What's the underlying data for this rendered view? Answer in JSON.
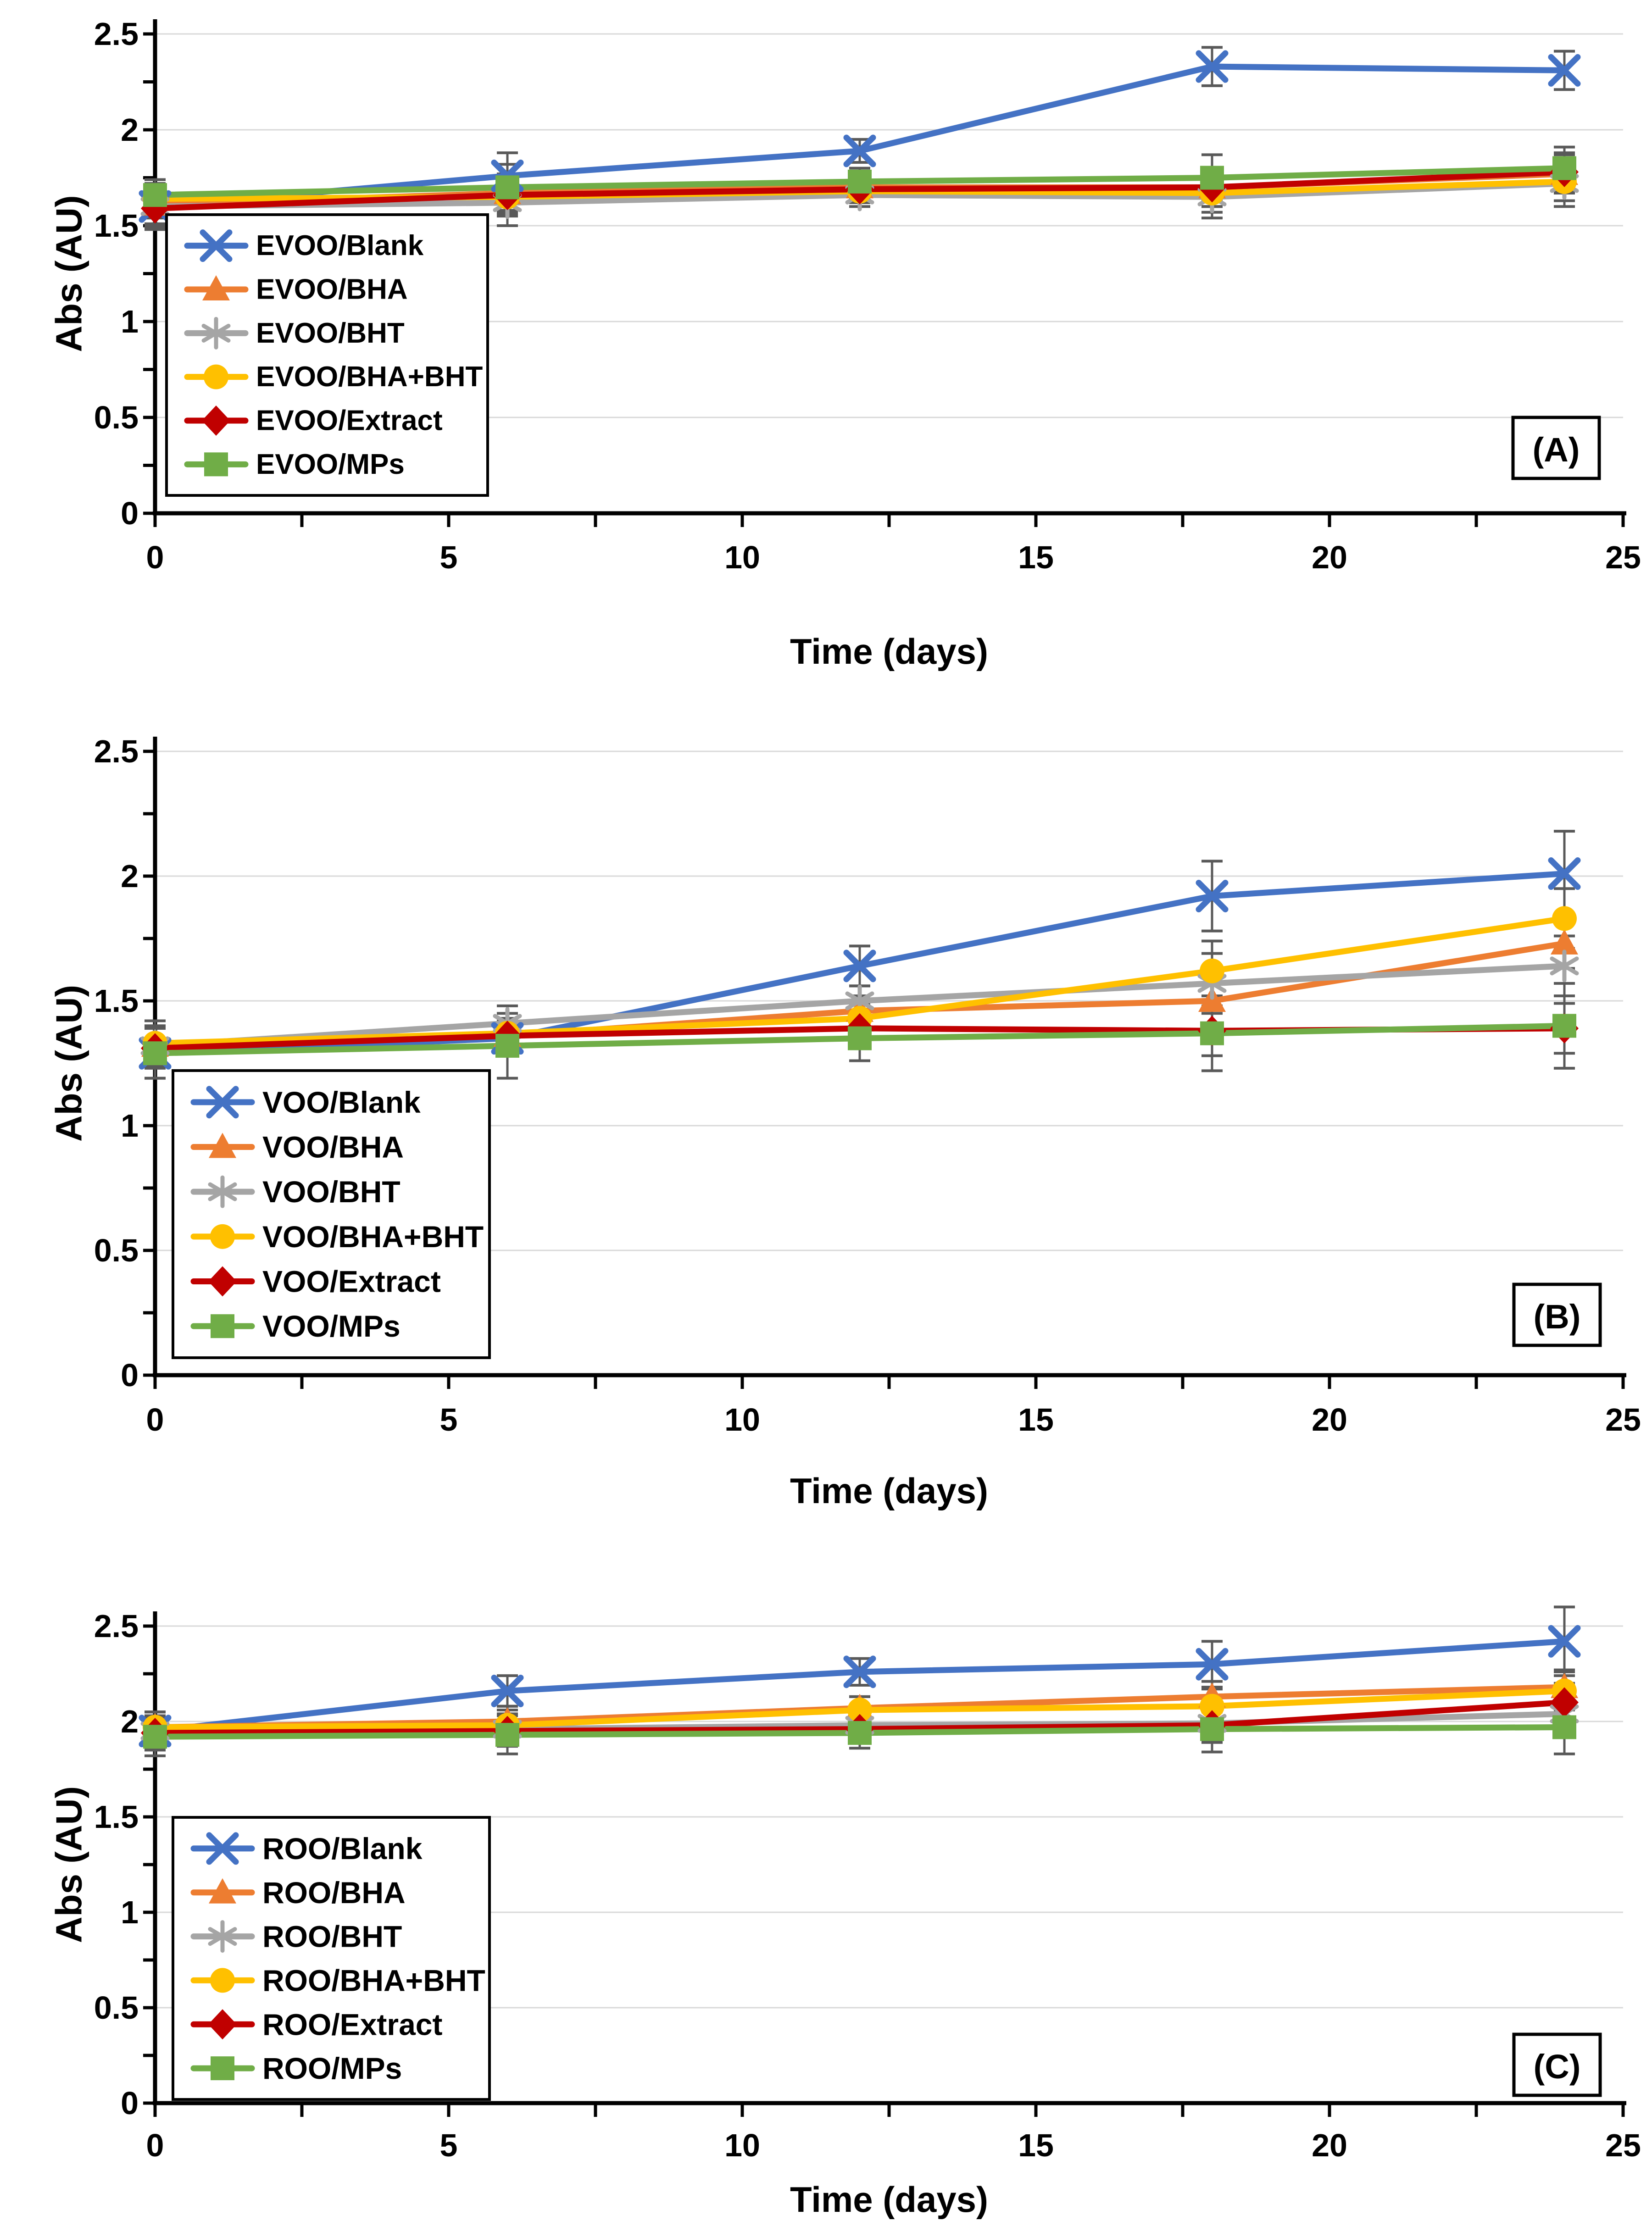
{
  "figure": {
    "description": "Three stacked line charts of absorbance vs storage time for olive oils with antioxidants",
    "background": "#ffffff"
  },
  "style": {
    "grid_color": "#D9D9D9",
    "axis_color": "#000000",
    "error_bar_color": "#595959",
    "legend_border_color": "#000000",
    "panel_box_border_color": "#000000"
  },
  "chart_data": [
    {
      "type": "line",
      "panel_label": "(A)",
      "xlabel": "Time (days)",
      "ylabel": "Abs (AU)",
      "xlim": [
        0,
        25
      ],
      "ylim": [
        0,
        2.5
      ],
      "x": [
        0,
        6,
        12,
        18,
        24
      ],
      "x_tick_labels": [
        "0",
        "5",
        "10",
        "15",
        "20",
        "25"
      ],
      "y_tick_labels": [
        "0",
        "0.5",
        "1",
        "1.5",
        "2",
        "2.5"
      ],
      "grid": "horizontal",
      "legend_position": "inside-left",
      "series": [
        {
          "name": "EVOO/Blank",
          "color": "#4472C4",
          "marker": "x",
          "values": [
            1.6,
            1.76,
            1.89,
            2.33,
            2.31
          ],
          "err": [
            0.12,
            0.12,
            0.06,
            0.1,
            0.1
          ]
        },
        {
          "name": "EVOO/BHA",
          "color": "#ED7D31",
          "marker": "triangle",
          "values": [
            1.61,
            1.67,
            1.7,
            1.7,
            1.77
          ],
          "err": [
            0.1,
            0.1,
            0.06,
            0.1,
            0.1
          ]
        },
        {
          "name": "EVOO/BHT",
          "color": "#A5A5A5",
          "marker": "asterisk",
          "values": [
            1.6,
            1.62,
            1.66,
            1.65,
            1.72
          ],
          "err": [
            0.1,
            0.12,
            0.06,
            0.11,
            0.12
          ]
        },
        {
          "name": "EVOO/BHA+BHT",
          "color": "#FFC000",
          "marker": "circle",
          "values": [
            1.64,
            1.65,
            1.68,
            1.67,
            1.73
          ],
          "err": [
            0.1,
            0.1,
            0.06,
            0.1,
            0.1
          ]
        },
        {
          "name": "EVOO/Extract",
          "color": "#C00000",
          "marker": "diamond",
          "values": [
            1.59,
            1.66,
            1.69,
            1.7,
            1.78
          ],
          "err": [
            0.1,
            0.1,
            0.06,
            0.1,
            0.1
          ]
        },
        {
          "name": "EVOO/MPs",
          "color": "#70AD47",
          "marker": "square",
          "values": [
            1.66,
            1.7,
            1.73,
            1.75,
            1.8
          ],
          "err": [
            0.08,
            0.12,
            0.07,
            0.12,
            0.11
          ]
        }
      ]
    },
    {
      "type": "line",
      "panel_label": "(B)",
      "xlabel": "Time (days)",
      "ylabel": "Abs (AU)",
      "xlim": [
        0,
        25
      ],
      "ylim": [
        0,
        2.5
      ],
      "x": [
        0,
        6,
        12,
        18,
        24
      ],
      "x_tick_labels": [
        "0",
        "5",
        "10",
        "15",
        "20",
        "25"
      ],
      "y_tick_labels": [
        "0",
        "0.5",
        "1",
        "1.5",
        "2",
        "2.5"
      ],
      "grid": "horizontal",
      "legend_position": "inside-left",
      "series": [
        {
          "name": "VOO/Blank",
          "color": "#4472C4",
          "marker": "x",
          "values": [
            1.29,
            1.35,
            1.64,
            1.92,
            2.01
          ],
          "err": [
            0.1,
            0.06,
            0.08,
            0.14,
            0.17
          ]
        },
        {
          "name": "VOO/BHA",
          "color": "#ED7D31",
          "marker": "triangle",
          "values": [
            1.32,
            1.36,
            1.46,
            1.5,
            1.73
          ],
          "err": [
            0.08,
            0.06,
            0.06,
            0.1,
            0.1
          ]
        },
        {
          "name": "VOO/BHT",
          "color": "#A5A5A5",
          "marker": "asterisk",
          "values": [
            1.32,
            1.41,
            1.5,
            1.57,
            1.64
          ],
          "err": [
            0.08,
            0.07,
            0.06,
            0.12,
            0.12
          ]
        },
        {
          "name": "VOO/BHA+BHT",
          "color": "#FFC000",
          "marker": "circle",
          "values": [
            1.33,
            1.37,
            1.43,
            1.62,
            1.83
          ],
          "err": [
            0.09,
            0.06,
            0.06,
            0.12,
            0.12
          ]
        },
        {
          "name": "VOO/Extract",
          "color": "#C00000",
          "marker": "diamond",
          "values": [
            1.31,
            1.36,
            1.39,
            1.38,
            1.39
          ],
          "err": [
            0.08,
            0.06,
            0.06,
            0.1,
            0.1
          ]
        },
        {
          "name": "VOO/MPs",
          "color": "#70AD47",
          "marker": "square",
          "values": [
            1.29,
            1.32,
            1.35,
            1.37,
            1.4
          ],
          "err": [
            0.1,
            0.13,
            0.09,
            0.15,
            0.17
          ]
        }
      ]
    },
    {
      "type": "line",
      "panel_label": "(C)",
      "xlabel": "Time (days)",
      "ylabel": "Abs (AU)",
      "xlim": [
        0,
        25
      ],
      "ylim": [
        0,
        2.5
      ],
      "x": [
        0,
        6,
        12,
        18,
        24
      ],
      "x_tick_labels": [
        "0",
        "5",
        "10",
        "15",
        "20",
        "25"
      ],
      "y_tick_labels": [
        "0",
        "0.5",
        "1",
        "1.5",
        "2",
        "2.5"
      ],
      "grid": "horizontal",
      "legend_position": "inside-left",
      "series": [
        {
          "name": "ROO/Blank",
          "color": "#4472C4",
          "marker": "x",
          "values": [
            1.95,
            2.16,
            2.26,
            2.3,
            2.42
          ],
          "err": [
            0.1,
            0.08,
            0.07,
            0.12,
            0.18
          ]
        },
        {
          "name": "ROO/BHA",
          "color": "#ED7D31",
          "marker": "triangle",
          "values": [
            1.97,
            2.0,
            2.07,
            2.13,
            2.18
          ],
          "err": [
            0.08,
            0.08,
            0.06,
            0.08,
            0.09
          ]
        },
        {
          "name": "ROO/BHT",
          "color": "#A5A5A5",
          "marker": "asterisk",
          "values": [
            1.95,
            1.96,
            1.98,
            1.99,
            2.04
          ],
          "err": [
            0.08,
            0.08,
            0.06,
            0.09,
            0.1
          ]
        },
        {
          "name": "ROO/BHA+BHT",
          "color": "#FFC000",
          "marker": "circle",
          "values": [
            1.97,
            1.98,
            2.06,
            2.08,
            2.16
          ],
          "err": [
            0.08,
            0.08,
            0.07,
            0.09,
            0.1
          ]
        },
        {
          "name": "ROO/Extract",
          "color": "#C00000",
          "marker": "diamond",
          "values": [
            1.94,
            1.95,
            1.96,
            1.98,
            2.1
          ],
          "err": [
            0.08,
            0.08,
            0.06,
            0.09,
            0.1
          ]
        },
        {
          "name": "ROO/MPs",
          "color": "#70AD47",
          "marker": "square",
          "values": [
            1.92,
            1.93,
            1.94,
            1.96,
            1.97
          ],
          "err": [
            0.1,
            0.1,
            0.08,
            0.12,
            0.14
          ]
        }
      ]
    }
  ]
}
